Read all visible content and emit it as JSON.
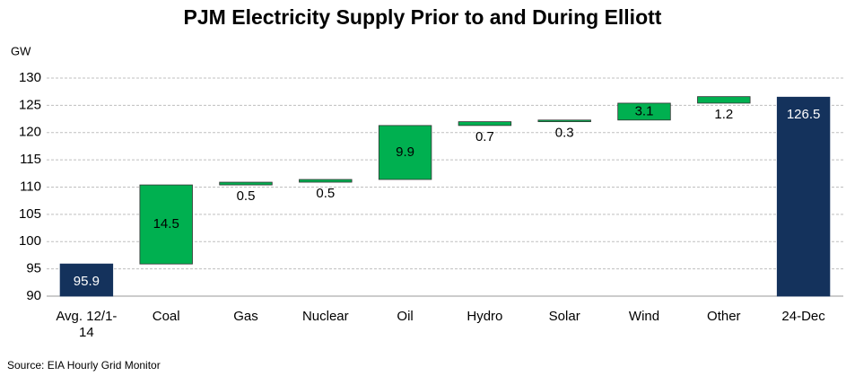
{
  "chart_data": {
    "type": "waterfall",
    "title": "PJM Electricity Supply Prior to and During Elliott",
    "y_label": "GW",
    "source": "Source: EIA Hourly Grid Monitor",
    "categories": [
      "Avg. 12/1-14",
      "Coal",
      "Gas",
      "Nuclear",
      "Oil",
      "Hydro",
      "Solar",
      "Wind",
      "Other",
      "24-Dec"
    ],
    "values": [
      95.9,
      14.5,
      0.5,
      0.5,
      9.9,
      0.7,
      0.3,
      3.1,
      1.2,
      126.5
    ],
    "measure": [
      "absolute",
      "relative",
      "relative",
      "relative",
      "relative",
      "relative",
      "relative",
      "relative",
      "relative",
      "absolute"
    ],
    "colors": {
      "absolute": "#14325c",
      "relative": "#00b050"
    },
    "ylim": [
      90,
      130
    ],
    "yticks": [
      90,
      95,
      100,
      105,
      110,
      115,
      120,
      125,
      130
    ],
    "grid": true
  }
}
